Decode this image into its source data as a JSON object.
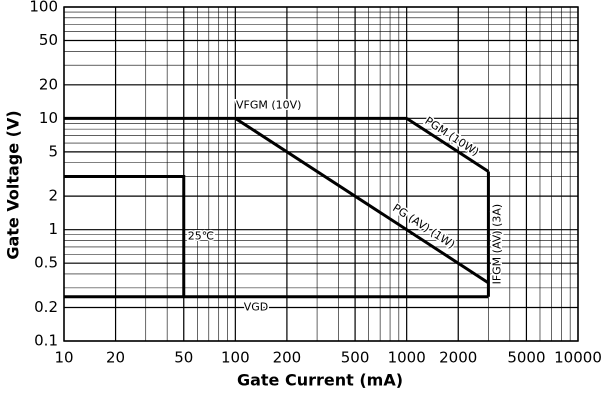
{
  "chart_data": {
    "type": "line",
    "xlabel": "Gate Current (mA)",
    "ylabel": "Gate Voltage (V)",
    "log_x": true,
    "log_y": true,
    "grid": true,
    "xlim": [
      10,
      10000
    ],
    "ylim": [
      0.1,
      100
    ],
    "xticks": [
      10,
      20,
      50,
      100,
      200,
      500,
      1000,
      2000,
      5000,
      10000
    ],
    "yticks": [
      0.1,
      0.2,
      0.5,
      1,
      2,
      5,
      10,
      20,
      50,
      100
    ],
    "series": [
      {
        "name": "VFGM (10V)",
        "color": "#000000",
        "x": [
          10,
          1000
        ],
        "values": [
          10,
          10
        ]
      },
      {
        "name": "PGM (10W)",
        "color": "#000000",
        "x": [
          1000,
          3000
        ],
        "values": [
          10,
          3.33
        ]
      },
      {
        "name": "IFGM (AV) (3A)",
        "color": "#000000",
        "x": [
          3000,
          3000
        ],
        "values": [
          3.33,
          0.25
        ]
      },
      {
        "name": "PG (AV) (1W)",
        "color": "#000000",
        "x": [
          100,
          3000
        ],
        "values": [
          10,
          0.333
        ]
      },
      {
        "name": "VGD",
        "color": "#000000",
        "x": [
          10,
          3000
        ],
        "values": [
          0.25,
          0.25
        ]
      },
      {
        "name": "25℃",
        "color": "#000000",
        "x": [
          10,
          50,
          50
        ],
        "values": [
          3,
          3,
          0.25
        ]
      }
    ]
  }
}
